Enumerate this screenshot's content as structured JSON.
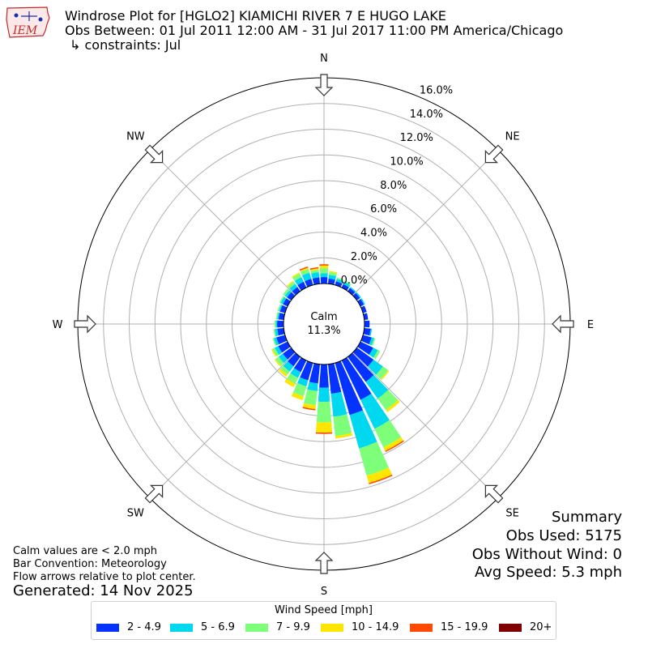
{
  "header": {
    "logo_text": "IEM",
    "title_line1": "Windrose Plot for [HGLO2] KIAMICHI RIVER 7 E HUGO LAKE",
    "title_line2": "Obs Between: 01 Jul 2011 12:00 AM - 31 Jul 2017 11:00 PM America/Chicago",
    "title_line3": "↳ constraints: Jul"
  },
  "summary": {
    "title": "Summary",
    "obs_used": "Obs Used: 5175",
    "obs_without_wind": "Obs Without Wind: 0",
    "avg_speed": "Avg Speed: 5.3 mph"
  },
  "notes": {
    "calm_note": "Calm values are < 2.0 mph",
    "bar_convention": "Bar Convention: Meteorology",
    "flow_arrows": "Flow arrows relative to plot center.",
    "generated": "Generated: 14 Nov 2025"
  },
  "legend": {
    "title": "Wind Speed [mph]",
    "items": [
      {
        "label": "2 - 4.9",
        "color": "#0433ff"
      },
      {
        "label": "5 - 6.9",
        "color": "#00d8f0"
      },
      {
        "label": "7 - 9.9",
        "color": "#7dff7a"
      },
      {
        "label": "10 - 14.9",
        "color": "#ffe600"
      },
      {
        "label": "15 - 19.9",
        "color": "#ff4a06"
      },
      {
        "label": "20+",
        "color": "#800000"
      }
    ]
  },
  "chart_data": {
    "type": "windrose",
    "title": "Windrose Plot for [HGLO2] KIAMICHI RIVER 7 E HUGO LAKE",
    "calm": {
      "label": "Calm",
      "value_text": "11.3%",
      "percent": 11.3
    },
    "radial_ticks": [
      "0.0%",
      "2.0%",
      "4.0%",
      "6.0%",
      "8.0%",
      "10.0%",
      "12.0%",
      "14.0%",
      "16.0%"
    ],
    "radial_max": 16.0,
    "compass_labels": [
      "N",
      "NE",
      "E",
      "SE",
      "S",
      "SW",
      "W",
      "NW"
    ],
    "speed_bins": [
      "2 - 4.9",
      "5 - 6.9",
      "7 - 9.9",
      "10 - 14.9",
      "15 - 19.9",
      "20+"
    ],
    "directions_deg": [
      0,
      10,
      20,
      30,
      40,
      50,
      60,
      70,
      80,
      90,
      100,
      110,
      120,
      130,
      140,
      150,
      160,
      170,
      180,
      190,
      200,
      210,
      220,
      230,
      240,
      250,
      260,
      270,
      280,
      290,
      300,
      310,
      320,
      330,
      340,
      350
    ],
    "series": [
      {
        "name": "2 - 4.9",
        "values": [
          0.5,
          0.4,
          0.3,
          0.3,
          0.3,
          0.3,
          0.3,
          0.3,
          0.3,
          0.4,
          0.5,
          0.7,
          1.1,
          1.6,
          2.4,
          3.4,
          4.2,
          2.3,
          1.8,
          1.5,
          1.4,
          1.0,
          0.9,
          0.8,
          0.8,
          0.7,
          0.5,
          0.5,
          0.4,
          0.4,
          0.4,
          0.4,
          0.4,
          0.5,
          0.5,
          0.5
        ]
      },
      {
        "name": "5 - 6.9",
        "values": [
          0.3,
          0.3,
          0.2,
          0.2,
          0.1,
          0.1,
          0.1,
          0.0,
          0.0,
          0.0,
          0.1,
          0.2,
          0.4,
          0.9,
          1.6,
          2.5,
          2.7,
          1.8,
          1.1,
          0.6,
          0.5,
          0.5,
          0.5,
          0.4,
          0.3,
          0.2,
          0.2,
          0.1,
          0.1,
          0.1,
          0.2,
          0.2,
          0.3,
          0.4,
          0.5,
          0.4
        ]
      },
      {
        "name": "7 - 9.9",
        "values": [
          0.4,
          0.2,
          0.1,
          0.1,
          0.0,
          0.0,
          0.0,
          0.0,
          0.0,
          0.0,
          0.0,
          0.1,
          0.2,
          0.5,
          1.1,
          1.6,
          2.2,
          1.5,
          1.6,
          1.1,
          0.8,
          0.5,
          0.3,
          0.3,
          0.2,
          0.1,
          0.1,
          0.1,
          0.1,
          0.1,
          0.1,
          0.2,
          0.2,
          0.3,
          0.3,
          0.2
        ]
      },
      {
        "name": "10 - 14.9",
        "values": [
          0.2,
          0.1,
          0.0,
          0.0,
          0.0,
          0.0,
          0.0,
          0.0,
          0.0,
          0.0,
          0.0,
          0.0,
          0.0,
          0.1,
          0.2,
          0.3,
          0.6,
          0.2,
          0.8,
          0.3,
          0.3,
          0.3,
          0.2,
          0.1,
          0.1,
          0.0,
          0.0,
          0.0,
          0.0,
          0.0,
          0.0,
          0.0,
          0.1,
          0.1,
          0.1,
          0.1
        ]
      },
      {
        "name": "15 - 19.9",
        "values": [
          0.1,
          0.0,
          0.0,
          0.0,
          0.0,
          0.0,
          0.0,
          0.0,
          0.0,
          0.0,
          0.0,
          0.0,
          0.0,
          0.0,
          0.0,
          0.1,
          0.1,
          0.0,
          0.1,
          0.1,
          0.0,
          0.0,
          0.0,
          0.0,
          0.0,
          0.0,
          0.0,
          0.0,
          0.0,
          0.0,
          0.0,
          0.0,
          0.0,
          0.0,
          0.1,
          0.1
        ]
      },
      {
        "name": "20+",
        "values": [
          0.0,
          0.0,
          0.0,
          0.0,
          0.0,
          0.0,
          0.0,
          0.0,
          0.0,
          0.0,
          0.0,
          0.0,
          0.0,
          0.0,
          0.0,
          0.0,
          0.0,
          0.0,
          0.0,
          0.0,
          0.0,
          0.0,
          0.0,
          0.0,
          0.0,
          0.0,
          0.0,
          0.0,
          0.0,
          0.0,
          0.0,
          0.0,
          0.0,
          0.0,
          0.0,
          0.0
        ]
      }
    ],
    "grid": true
  }
}
